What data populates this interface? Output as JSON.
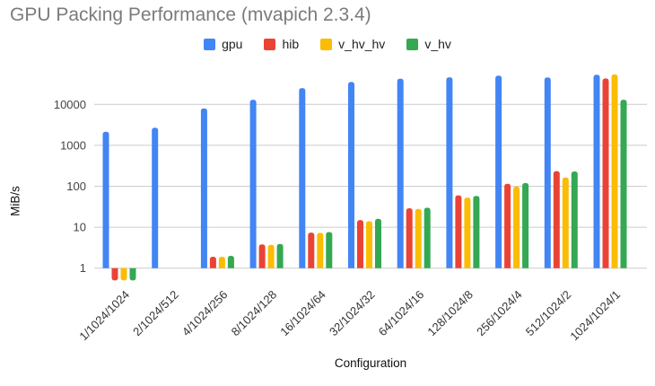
{
  "chart_data": {
    "type": "bar",
    "title": "GPU Packing Performance (mvapich 2.3.4)",
    "xlabel": "Configuration",
    "ylabel": "MiB/s",
    "yscale": "log",
    "ylim": [
      0.5,
      70000
    ],
    "yticks": [
      1,
      10,
      100,
      1000,
      10000
    ],
    "grid": true,
    "legend_position": "top",
    "gridline_color": "#cccccc",
    "categories": [
      "1/1024/1024",
      "2/1024/512",
      "4/1024/256",
      "8/1024/128",
      "16/1024/64",
      "32/1024/32",
      "64/1024/16",
      "128/1024/8",
      "256/1024/4",
      "512/1024/2",
      "1024/1024/1"
    ],
    "series": [
      {
        "name": "gpu",
        "color": "#4285F4",
        "values": [
          2150,
          2700,
          8000,
          13000,
          25000,
          35500,
          42500,
          46000,
          50500,
          45500,
          53000
        ]
      },
      {
        "name": "hib",
        "color": "#EA4335",
        "values": [
          0.5,
          null,
          1.9,
          3.8,
          7.4,
          15,
          29,
          60,
          115,
          235,
          43000
        ]
      },
      {
        "name": "v_hv_hv",
        "color": "#FBBC04",
        "values": [
          0.5,
          null,
          1.9,
          3.7,
          7.3,
          14,
          28,
          53,
          98,
          165,
          54000
        ]
      },
      {
        "name": "v_hv",
        "color": "#34A853",
        "values": [
          0.5,
          null,
          2.0,
          3.9,
          7.6,
          16,
          30,
          58,
          120,
          230,
          13000
        ]
      }
    ]
  }
}
